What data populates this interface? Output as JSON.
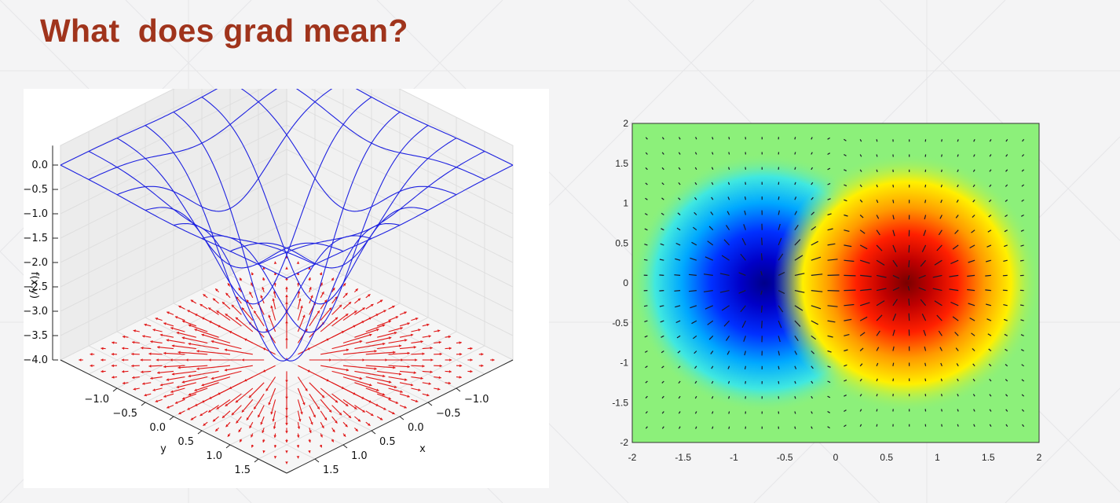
{
  "slide": {
    "title": "What  does grad mean?"
  },
  "chart_data": [
    {
      "type": "surface",
      "title": "",
      "zlabel": "f(x,y)",
      "xlabel": "x",
      "ylabel": "y",
      "z_ticks": [
        "0.0",
        "−0.5",
        "−1.0",
        "−1.5",
        "−2.0",
        "−2.5",
        "−3.0",
        "−3.5",
        "−4.0"
      ],
      "x_ticks": [
        "1.5",
        "1.0",
        "0.5",
        "0.0",
        "−0.5",
        "−1.0"
      ],
      "y_ticks": [
        "1.5",
        "1.0",
        "0.5",
        "0.0",
        "−0.5",
        "−1.0"
      ],
      "zlim": [
        -4.0,
        0.0
      ],
      "xlim": [
        -1.5,
        1.5
      ],
      "ylim": [
        -1.5,
        1.5
      ],
      "surface": "z = -4 * exp(-(x^2 + y^2))",
      "surface_color": "#1e22e0",
      "gradient_field_color": "#e01818",
      "grid": true
    },
    {
      "type": "heatmap",
      "title": "",
      "xlim": [
        -2,
        2
      ],
      "ylim": [
        -2,
        2
      ],
      "x_ticks": [
        "-2",
        "-1.5",
        "-1",
        "-0.5",
        "0",
        "0.5",
        "1",
        "1.5",
        "2"
      ],
      "y_ticks": [
        "2",
        "1.5",
        "1",
        "0.5",
        "0",
        "-0.5",
        "-1",
        "-1.5",
        "-2"
      ],
      "field": "f = (x-0.7)... minimum near (-0.7, 0), maximum near (0.7, 0)",
      "minimum": {
        "x": -0.7,
        "y": 0
      },
      "maximum": {
        "x": 0.7,
        "y": 0
      },
      "colormap": "jet",
      "gradient_arrows": true
    }
  ]
}
